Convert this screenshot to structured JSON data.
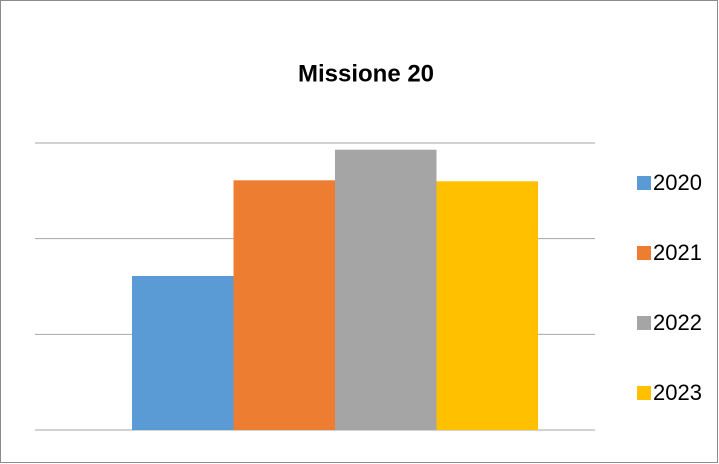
{
  "chart_data": {
    "type": "bar",
    "title": "Missione 20",
    "categories": [
      null
    ],
    "series": [
      {
        "name": "2020",
        "color": "#5b9bd5",
        "values": [
          1.61
        ]
      },
      {
        "name": "2021",
        "color": "#ed7d31",
        "values": [
          2.61
        ]
      },
      {
        "name": "2022",
        "color": "#a5a5a5",
        "values": [
          2.93
        ]
      },
      {
        "name": "2023",
        "color": "#ffc000",
        "values": [
          2.6
        ]
      }
    ],
    "ylim": [
      0,
      3
    ],
    "yticks": [
      0,
      1,
      2,
      3
    ],
    "grid": true,
    "legend": "right"
  }
}
